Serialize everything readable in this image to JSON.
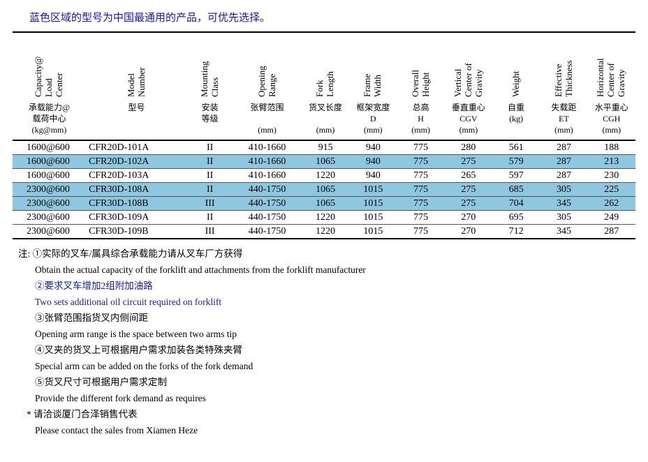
{
  "title_text": "蓝色区域的型号为中国最通用的产品，可优先选择。",
  "headers_en": [
    "Capacity@\nLoad\nCenter",
    "Model\nNumber",
    "Mounting\nClass",
    "Opening\nRange",
    "Fork\nLength",
    "Frame\nWidth",
    "Overall\nHeight",
    "Vertical\nCenter of\nGravity",
    "Weight",
    "Effective\nThickness",
    "Horizontal\nCenter of\nGravity"
  ],
  "headers_cn": [
    "承载能力@\n载荷中心\n(kg@mm)",
    "型号",
    "安装\n等级",
    "张臂范围\n\n(mm)",
    "货叉长度\n\n(mm)",
    "框架宽度\nD\n(mm)",
    "总高\nH\n(mm)",
    "垂直重心\nCGV\n(mm)",
    "自重\n(kg)",
    "失载距\nET\n(mm)",
    "水平重心\nCGH\n(mm)"
  ],
  "rows": [
    {
      "hl": false,
      "cells": [
        "1600@600",
        "CFR20D-101A",
        "II",
        "410-1660",
        "915",
        "940",
        "775",
        "280",
        "561",
        "287",
        "188"
      ]
    },
    {
      "hl": true,
      "cells": [
        "1600@600",
        "CFR20D-102A",
        "II",
        "410-1660",
        "1065",
        "940",
        "775",
        "275",
        "579",
        "287",
        "213"
      ]
    },
    {
      "hl": false,
      "cells": [
        "1600@600",
        "CFR20D-103A",
        "II",
        "410-1660",
        "1220",
        "940",
        "775",
        "265",
        "597",
        "287",
        "230"
      ]
    },
    {
      "hl": true,
      "cells": [
        "2300@600",
        "CFR30D-108A",
        "II",
        "440-1750",
        "1065",
        "1015",
        "775",
        "275",
        "685",
        "305",
        "225"
      ]
    },
    {
      "hl": true,
      "cells": [
        "2300@600",
        "CFR30D-108B",
        "III",
        "440-1750",
        "1065",
        "1015",
        "775",
        "275",
        "704",
        "345",
        "262"
      ]
    },
    {
      "hl": false,
      "cells": [
        "2300@600",
        "CFR30D-109A",
        "II",
        "440-1750",
        "1220",
        "1015",
        "775",
        "270",
        "695",
        "305",
        "249"
      ]
    },
    {
      "hl": false,
      "cells": [
        "2300@600",
        "CFR30D-109B",
        "III",
        "440-1750",
        "1220",
        "1015",
        "775",
        "270",
        "712",
        "345",
        "287"
      ]
    }
  ],
  "notes": {
    "head": "注: ①实际的叉车/属具综合承载能力请从叉车厂方获得",
    "en1": "Obtain the actual capacity of the forklift and attachments from the forklift manufacturer",
    "cn2": "②要求叉车增加2组附加油路",
    "en2": "Two sets additional oil circuit required on forklift",
    "cn3": "③张臂范围指货叉内侧间距",
    "en3": "Opening arm range is the space between two arms tip",
    "cn4": "④叉夹的货叉上可根据用户需求加装各类特殊夹臂",
    "en4": "Special arm can be added on the forks of the fork demand",
    "cn5": "⑤货叉尺寸可根据用户需求定制",
    "en5": "Provide the different fork demand as requires",
    "cn6": "* 请洽谈厦门合泽销售代表",
    "en6": "Please contact the sales from Xiamen Heze"
  },
  "colors": {
    "title": "#1a1a8c",
    "highlight_row": "#8fc6e0",
    "text": "#000000",
    "bg": "#ffffff"
  }
}
